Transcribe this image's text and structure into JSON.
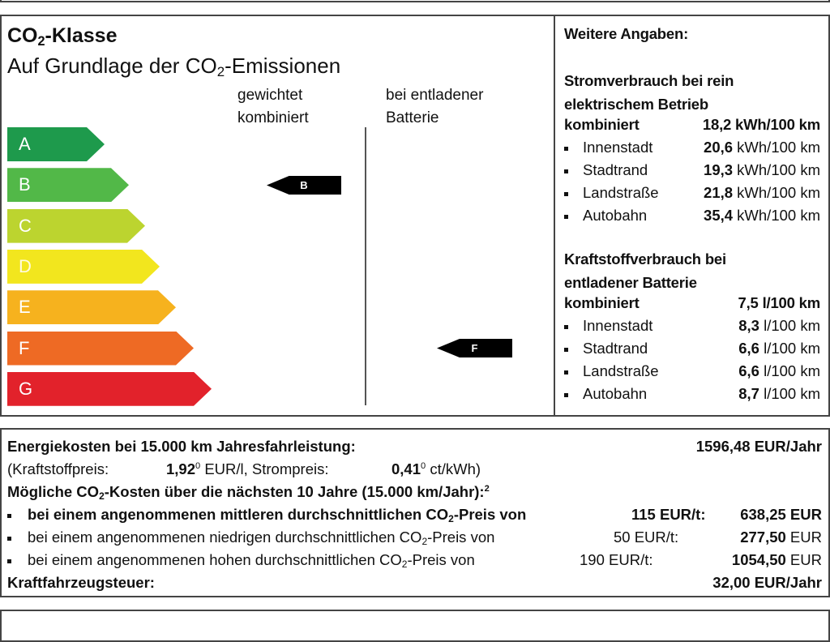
{
  "co2_class": {
    "title_prefix": "CO",
    "title_sub": "2",
    "title_suffix": "-Klasse",
    "subtitle_prefix": "Auf Grundlage der CO",
    "subtitle_sub": "2",
    "subtitle_suffix": "-Emissionen",
    "col1_line1": "gewichtet",
    "col1_line2": "kombiniert",
    "col2_line1": "bei entladener",
    "col2_line2": "Batterie",
    "classes": [
      {
        "label": "A",
        "color": "#1e9a4c"
      },
      {
        "label": "B",
        "color": "#52b848"
      },
      {
        "label": "C",
        "color": "#bcd42f"
      },
      {
        "label": "D",
        "color": "#f2e61e"
      },
      {
        "label": "E",
        "color": "#f6b21e"
      },
      {
        "label": "F",
        "color": "#ee6a24"
      },
      {
        "label": "G",
        "color": "#e2222b"
      }
    ],
    "weighted_combined_class": "B",
    "discharged_battery_class": "F"
  },
  "further": {
    "title": "Weitere Angaben:",
    "electric_title1": "Stromverbrauch bei rein",
    "electric_title2": "elektrischem Betrieb",
    "electric_combined_label": "kombiniert",
    "electric_combined_value": "18,2 kWh/100 km",
    "electric_items": [
      {
        "label": "Innenstadt",
        "value": "20,6",
        "unit": " kWh/100 km"
      },
      {
        "label": "Stadtrand",
        "value": "19,3",
        "unit": " kWh/100 km"
      },
      {
        "label": "Landstraße",
        "value": "21,8",
        "unit": " kWh/100 km"
      },
      {
        "label": "Autobahn",
        "value": "35,4",
        "unit": " kWh/100 km"
      }
    ],
    "fuel_title1": "Kraftstoffverbrauch bei",
    "fuel_title2": "entladener Batterie",
    "fuel_combined_label": "kombiniert",
    "fuel_combined_value": "7,5 l/100 km",
    "fuel_items": [
      {
        "label": "Innenstadt",
        "value": "8,3",
        "unit": " l/100 km"
      },
      {
        "label": "Stadtrand",
        "value": "6,6",
        "unit": " l/100 km"
      },
      {
        "label": "Landstraße",
        "value": "6,6",
        "unit": " l/100 km"
      },
      {
        "label": "Autobahn",
        "value": "8,7",
        "unit": " l/100 km"
      }
    ]
  },
  "costs": {
    "energy_label": "Energiekosten bei 15.000 km Jahresfahrleistung:",
    "energy_value": "1596,48 EUR/Jahr",
    "fuel_price_label": "(Kraftstoffpreis:",
    "fuel_price_value": "1,92",
    "fuel_price_sup": "0",
    "fuel_price_unit": " EUR/l, Strompreis:",
    "power_price_value": "0,41",
    "power_price_sup": "0",
    "power_price_unit": " ct/kWh)",
    "co2_costs_prefix": "Mögliche CO",
    "co2_costs_sub": "2",
    "co2_costs_suffix": "-Kosten über die nächsten 10 Jahre (15.000 km/Jahr):",
    "co2_costs_sup": "2",
    "scenarios": [
      {
        "text_prefix": "bei einem angenommenen mittleren durchschnittlichen CO",
        "text_suffix": "-Preis von",
        "price": "115 EUR/t:",
        "value": "638,25",
        "unit": " EUR"
      },
      {
        "text_prefix": "bei einem angenommenen niedrigen durchschnittlichen CO",
        "text_suffix": "-Preis von",
        "price": "50 EUR/t:",
        "value": "277,50",
        "unit": " EUR"
      },
      {
        "text_prefix": "bei einem angenommenen hohen durchschnittlichen CO",
        "text_suffix": "-Preis von",
        "price": "190 EUR/t:",
        "value": "1054,50",
        "unit": " EUR"
      }
    ],
    "tax_label": "Kraftfahrzeugsteuer:",
    "tax_value": "32,00 EUR/Jahr"
  }
}
